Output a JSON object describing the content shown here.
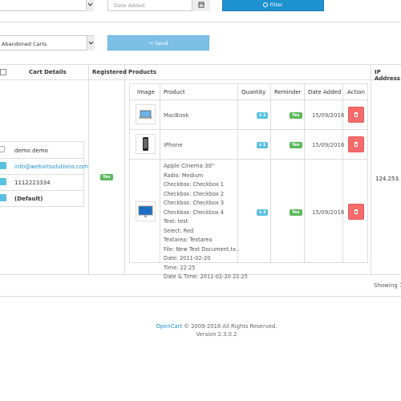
{
  "filters": {
    "date_added_placeholder": "Date Added",
    "filter_label": "Filter",
    "cart_select": "Abandoned Carts",
    "send_label": "Send"
  },
  "table": {
    "headers": {
      "cart_details": "Cart Details",
      "registered": "Registered",
      "products": "Products",
      "ip_address": "IP Address"
    },
    "customer": {
      "name": "demo demo",
      "email": "info@webxitsolutions.com",
      "phone": "1112223334",
      "group": "(Default)"
    },
    "registered_badge": "Yes",
    "ip_value": "124.253.1",
    "products": {
      "headers": [
        "Image",
        "Product",
        "Quantity",
        "Reminder",
        "Date Added",
        "Action"
      ],
      "rows": [
        {
          "name": "MacBook",
          "qty": "x 1",
          "reminder": "Yes",
          "date": "15/09/2016"
        },
        {
          "name": "iPhone",
          "qty": "x 1",
          "reminder": "Yes",
          "date": "15/09/2016"
        },
        {
          "name": "Apple Cinema 30\"",
          "options": [
            "Radio: Medium",
            "Checkbox: Checkbox 1",
            "Checkbox: Checkbox 2",
            "Checkbox: Checkbox 3",
            "Checkbox: Checkbox 4",
            "Text: test",
            "Select: Red",
            "Textarea: Textarea",
            "File: New Text Document.tx..",
            "Date: 2011-02-20",
            "Time: 22:25",
            "Date & Time: 2011-02-20 22:25"
          ],
          "qty": "x 2",
          "reminder": "Yes",
          "date": "15/09/2016"
        }
      ]
    }
  },
  "pagination": {
    "showing": "Showing 1 t"
  },
  "footer": {
    "brand": "OpenCart",
    "copyright": " © 2009-2016 All Rights Reserved.",
    "version": "Version 2.3.0.2"
  },
  "colors": {
    "primary": "#1e91cf",
    "info": "#5bc0de",
    "success": "#5cb85c",
    "danger": "#f56b6b"
  }
}
